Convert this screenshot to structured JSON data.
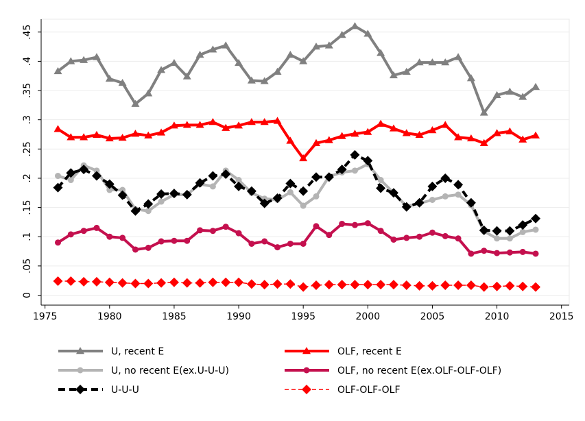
{
  "chart_data": {
    "type": "line",
    "x": [
      1976,
      1977,
      1978,
      1979,
      1980,
      1981,
      1982,
      1983,
      1984,
      1985,
      1986,
      1987,
      1988,
      1989,
      1990,
      1991,
      1992,
      1993,
      1994,
      1995,
      1996,
      1997,
      1998,
      1999,
      2000,
      2001,
      2002,
      2003,
      2004,
      2005,
      2006,
      2007,
      2008,
      2009,
      2010,
      2011,
      2012,
      2013
    ],
    "xlim": [
      1974.7,
      2015.6
    ],
    "xticks": [
      1975,
      1980,
      1985,
      1990,
      1995,
      2000,
      2005,
      2010,
      2015
    ],
    "ylim": [
      -0.017,
      0.472
    ],
    "yticks": [
      0,
      {
        "value": 0.05,
        "label": ".05"
      },
      {
        "value": 0.1,
        "label": ".1"
      },
      {
        "value": 0.15,
        "label": ".15"
      },
      {
        "value": 0.2,
        "label": ".2"
      },
      {
        "value": 0.25,
        "label": ".25"
      },
      {
        "value": 0.3,
        "label": ".3"
      },
      {
        "value": 0.35,
        "label": ".35"
      },
      {
        "value": 0.4,
        "label": ".4"
      },
      {
        "value": 0.45,
        "label": ".45"
      }
    ],
    "grid": true,
    "series": [
      {
        "name": "U, recent E",
        "color": "#808080",
        "marker": "triangle",
        "dash": false,
        "values": [
          0.383,
          0.4,
          0.402,
          0.407,
          0.37,
          0.363,
          0.327,
          0.345,
          0.385,
          0.397,
          0.374,
          0.411,
          0.42,
          0.427,
          0.397,
          0.367,
          0.366,
          0.382,
          0.411,
          0.4,
          0.425,
          0.427,
          0.445,
          0.46,
          0.447,
          0.414,
          0.376,
          0.382,
          0.398,
          0.398,
          0.398,
          0.407,
          0.371,
          0.312,
          0.342,
          0.348,
          0.339,
          0.356
        ]
      },
      {
        "name": "OLF, recent E",
        "color": "#ff0000",
        "marker": "triangle",
        "dash": false,
        "values": [
          0.284,
          0.27,
          0.27,
          0.274,
          0.268,
          0.269,
          0.276,
          0.273,
          0.278,
          0.29,
          0.291,
          0.291,
          0.296,
          0.286,
          0.29,
          0.296,
          0.296,
          0.298,
          0.264,
          0.234,
          0.26,
          0.265,
          0.272,
          0.276,
          0.279,
          0.293,
          0.285,
          0.277,
          0.274,
          0.282,
          0.291,
          0.27,
          0.268,
          0.26,
          0.277,
          0.28,
          0.266,
          0.273
        ]
      },
      {
        "name": "U, no recent E(ex.U-U-U)",
        "color": "#b4b4b4",
        "marker": "circle",
        "dash": false,
        "values": [
          0.204,
          0.197,
          0.222,
          0.213,
          0.18,
          0.18,
          0.147,
          0.144,
          0.16,
          0.172,
          0.172,
          0.19,
          0.186,
          0.213,
          0.197,
          0.175,
          0.165,
          0.163,
          0.176,
          0.153,
          0.169,
          0.203,
          0.21,
          0.213,
          0.224,
          0.197,
          0.175,
          0.152,
          0.157,
          0.163,
          0.169,
          0.172,
          0.154,
          0.109,
          0.097,
          0.097,
          0.108,
          0.112
        ]
      },
      {
        "name": "OLF, no recent E(ex.OLF-OLF-OLF)",
        "color": "#c4104e",
        "marker": "circle",
        "dash": false,
        "values": [
          0.09,
          0.104,
          0.11,
          0.115,
          0.1,
          0.098,
          0.078,
          0.081,
          0.092,
          0.093,
          0.093,
          0.111,
          0.11,
          0.117,
          0.106,
          0.088,
          0.092,
          0.082,
          0.088,
          0.088,
          0.118,
          0.103,
          0.122,
          0.12,
          0.123,
          0.11,
          0.095,
          0.098,
          0.1,
          0.107,
          0.101,
          0.097,
          0.071,
          0.076,
          0.072,
          0.073,
          0.074,
          0.071
        ]
      },
      {
        "name": "U-U-U",
        "color": "#000000",
        "marker": "diamond",
        "dash": true,
        "values": [
          0.184,
          0.209,
          0.215,
          0.204,
          0.19,
          0.171,
          0.144,
          0.156,
          0.173,
          0.174,
          0.172,
          0.192,
          0.204,
          0.207,
          0.186,
          0.178,
          0.157,
          0.166,
          0.191,
          0.178,
          0.202,
          0.202,
          0.215,
          0.24,
          0.23,
          0.183,
          0.175,
          0.151,
          0.158,
          0.186,
          0.2,
          0.189,
          0.158,
          0.111,
          0.11,
          0.11,
          0.12,
          0.131
        ]
      },
      {
        "name": "OLF-OLF-OLF",
        "color": "#ff0000",
        "marker": "diamond",
        "dash": true,
        "values": [
          0.024,
          0.024,
          0.023,
          0.023,
          0.022,
          0.021,
          0.02,
          0.02,
          0.021,
          0.022,
          0.021,
          0.021,
          0.022,
          0.022,
          0.022,
          0.019,
          0.018,
          0.019,
          0.019,
          0.014,
          0.017,
          0.018,
          0.018,
          0.018,
          0.018,
          0.018,
          0.018,
          0.017,
          0.016,
          0.016,
          0.017,
          0.017,
          0.017,
          0.014,
          0.015,
          0.016,
          0.015,
          0.014
        ]
      }
    ]
  }
}
